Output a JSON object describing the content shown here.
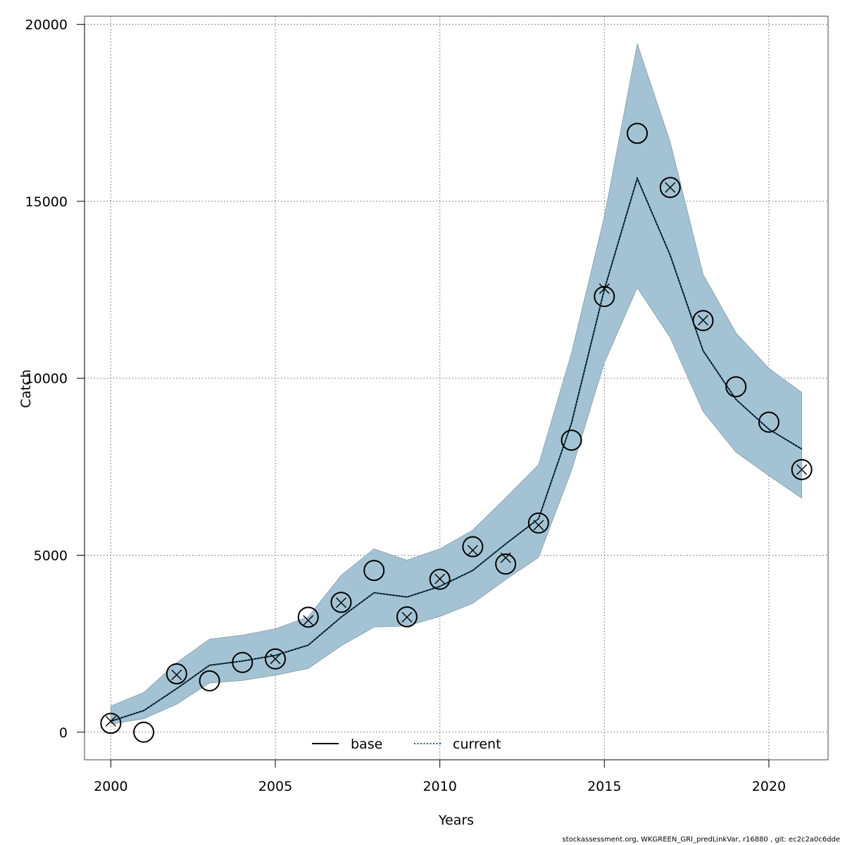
{
  "chart_data": {
    "type": "line",
    "title": "",
    "xlabel": "Years",
    "ylabel": "Catch",
    "xlim": [
      1999.2,
      2021.8
    ],
    "ylim": [
      -780,
      20230
    ],
    "x_ticks": [
      2000,
      2005,
      2010,
      2015,
      2020
    ],
    "y_ticks": [
      0,
      5000,
      10000,
      15000,
      20000
    ],
    "x_tick_labels": [
      "2000",
      "2005",
      "2010",
      "2015",
      "2020"
    ],
    "y_tick_labels": [
      "0",
      "5000",
      "10000",
      "15000",
      "20000"
    ],
    "grid": true,
    "legend_position": "bottom-center",
    "x": [
      2000,
      2001,
      2002,
      2003,
      2004,
      2005,
      2006,
      2007,
      2008,
      2009,
      2010,
      2011,
      2012,
      2013,
      2014,
      2015,
      2016,
      2017,
      2018,
      2019,
      2020,
      2021
    ],
    "band": {
      "upper": [
        740,
        1120,
        1960,
        2630,
        2740,
        2920,
        3260,
        4430,
        5180,
        4860,
        5180,
        5710,
        6620,
        7560,
        10710,
        14570,
        19450,
        16680,
        12940,
        11280,
        10280,
        9600
      ],
      "lower": [
        230,
        380,
        790,
        1390,
        1460,
        1610,
        1800,
        2440,
        2970,
        3000,
        3270,
        3640,
        4310,
        4940,
        7390,
        10440,
        12560,
        11150,
        9060,
        7910,
        7250,
        6610
      ],
      "color": "#a3c3d4"
    },
    "series": [
      {
        "name": "base",
        "style": "solid",
        "color": "#000000",
        "values": [
          310,
          610,
          1230,
          1890,
          2010,
          2170,
          2460,
          3250,
          3940,
          3820,
          4120,
          4570,
          5320,
          6030,
          8730,
          12510,
          15650,
          13480,
          10780,
          9400,
          8560,
          8000
        ]
      },
      {
        "name": "current",
        "style": "dotted",
        "color": "#1a5f8a",
        "values": [
          310,
          610,
          1230,
          1890,
          2010,
          2170,
          2460,
          3250,
          3940,
          3820,
          4120,
          4570,
          5320,
          6030,
          8730,
          12510,
          15650,
          13480,
          10780,
          9400,
          8560,
          8000
        ]
      }
    ],
    "observations_circle": [
      250,
      0,
      1650,
      1450,
      1970,
      2070,
      3250,
      3670,
      4570,
      3260,
      4320,
      5240,
      4750,
      5910,
      8250,
      12310,
      16920,
      15390,
      11630,
      9760,
      8760,
      7420
    ],
    "observations_x": [
      310,
      null,
      1620,
      null,
      null,
      2070,
      3160,
      3660,
      null,
      3250,
      4330,
      5140,
      4930,
      5850,
      null,
      12530,
      null,
      15390,
      11640,
      null,
      null,
      7420
    ]
  },
  "footer_text": "stockassessment.org, WKGREEN_GRI_predLinkVar, r16880 , git: ec2c2a0c6dde"
}
